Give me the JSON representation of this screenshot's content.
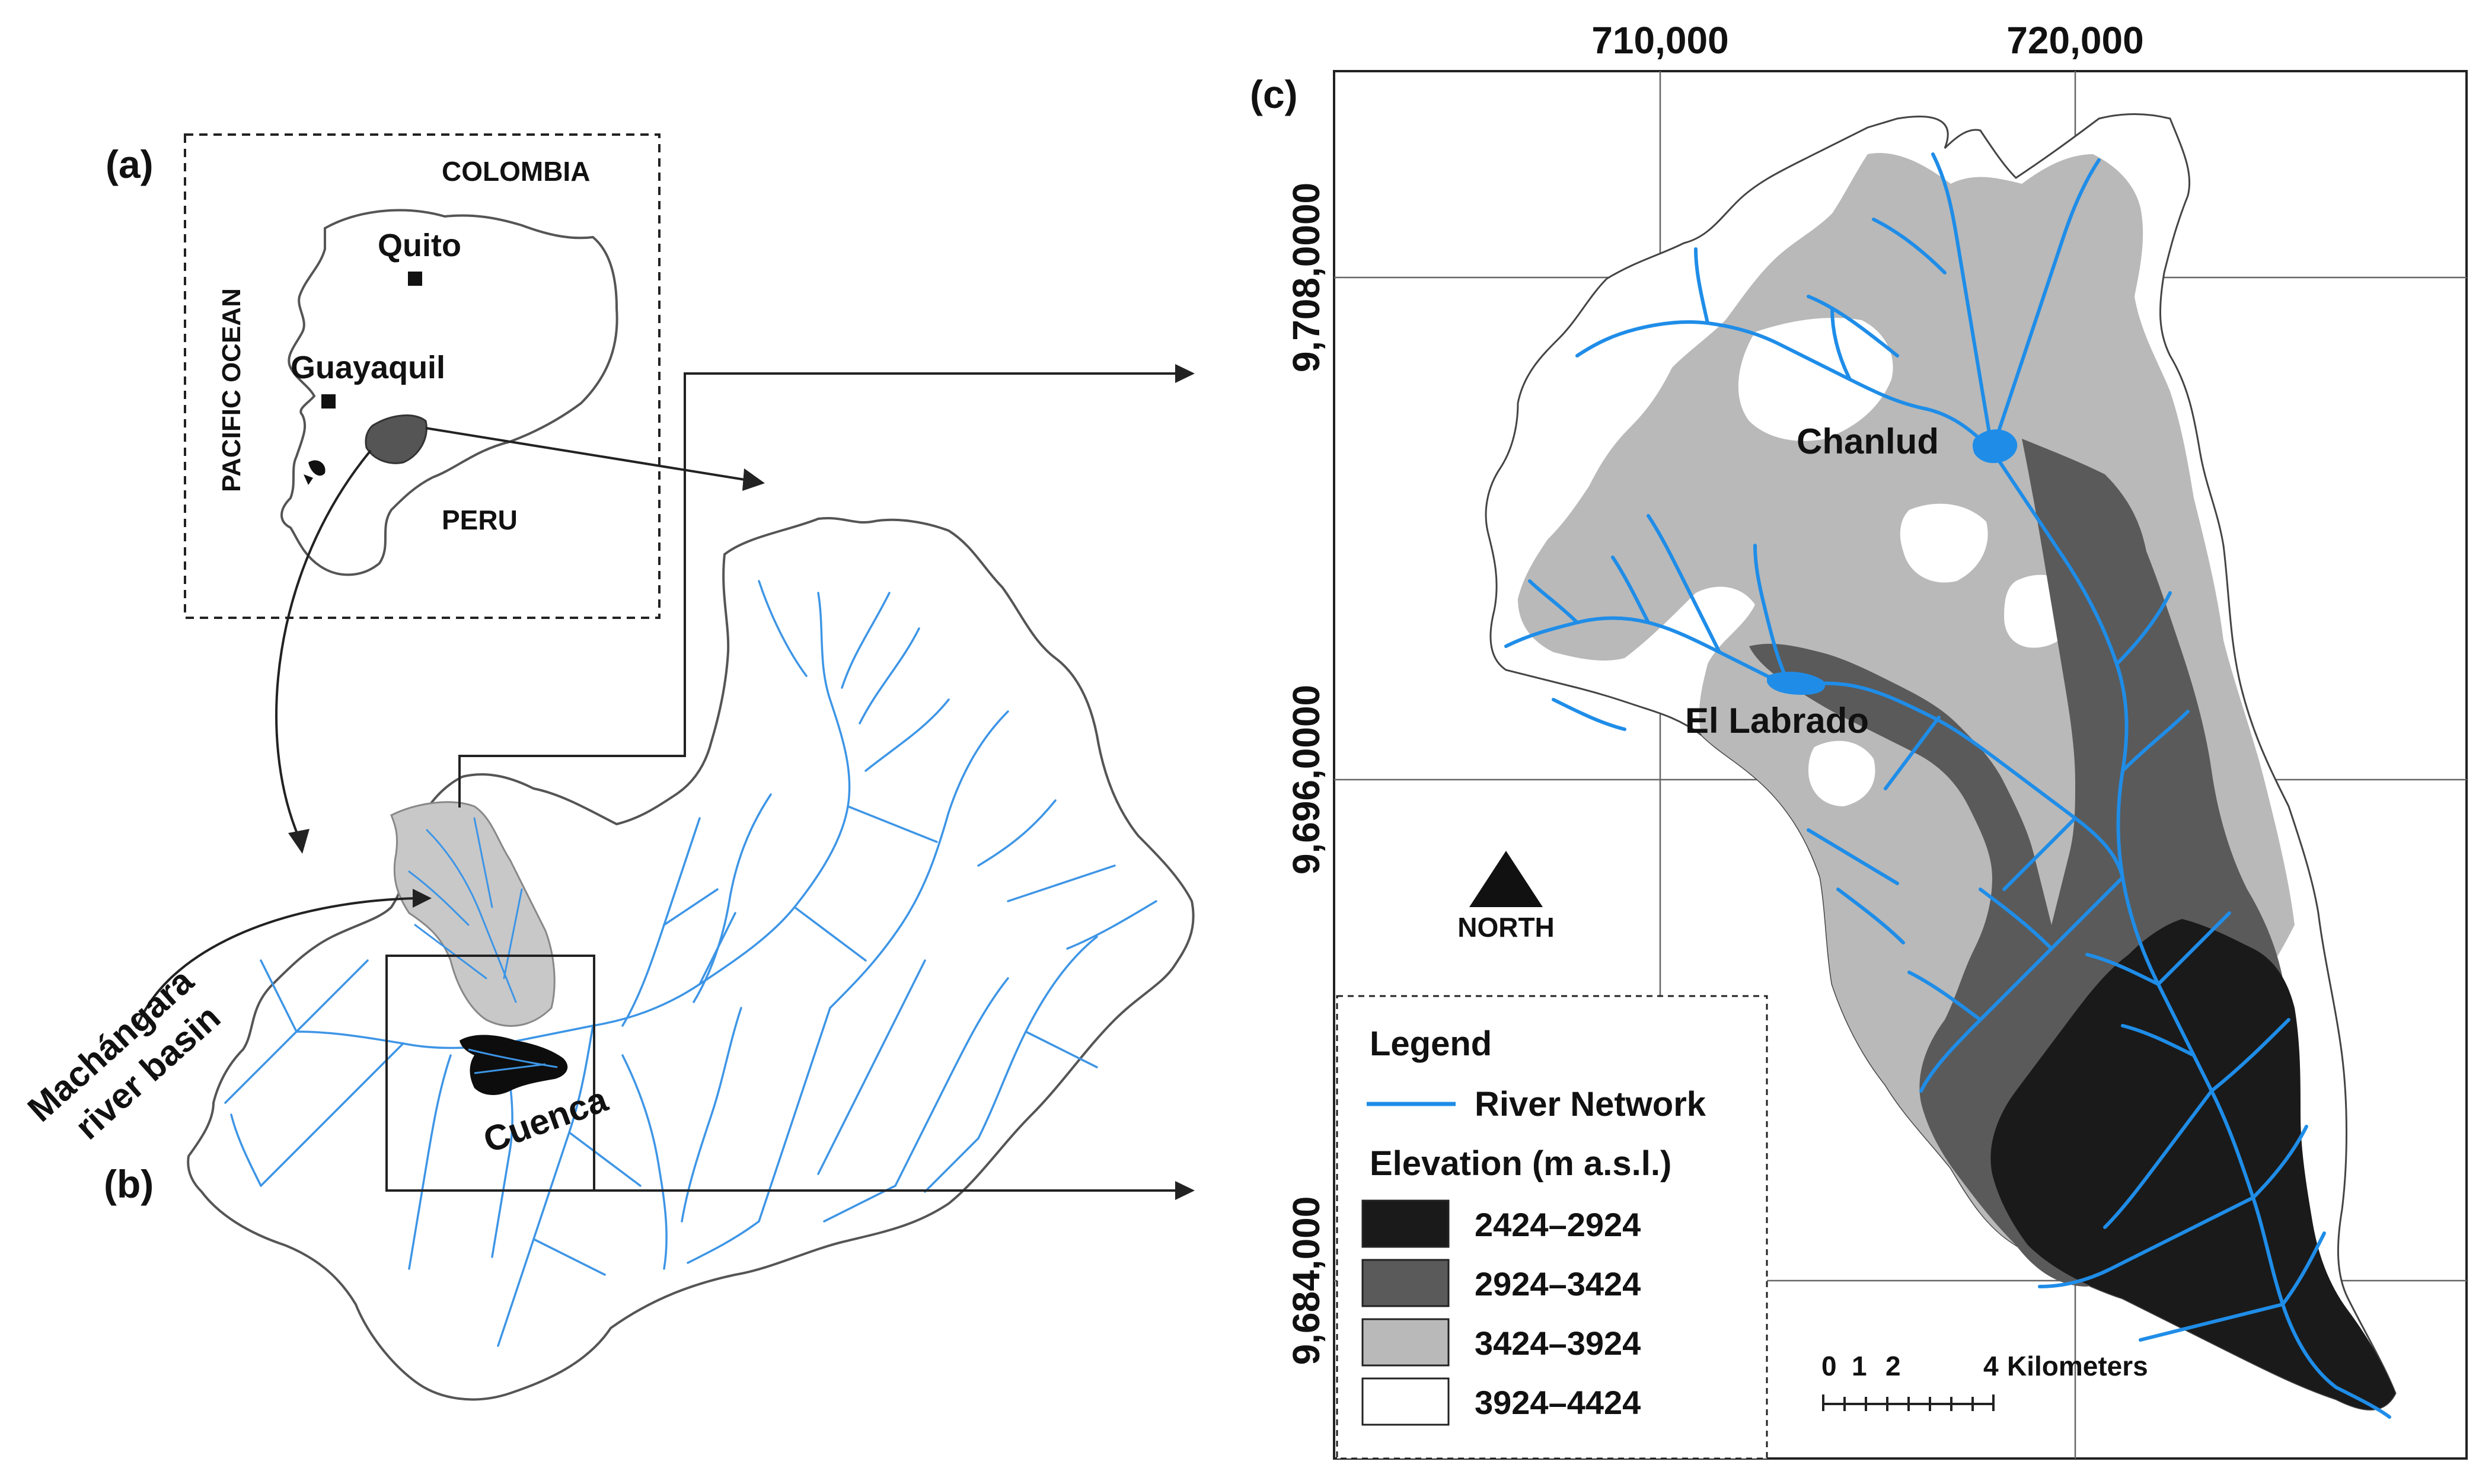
{
  "panel_a": {
    "tag": "(a)",
    "countries": {
      "north": "COLOMBIA",
      "south": "PERU"
    },
    "ocean": "PACIFIC OCEAN",
    "cities": [
      "Quito",
      "Guayaquil"
    ]
  },
  "panel_b": {
    "tag": "(b)",
    "basin_label_line1": "Machángara",
    "basin_label_line2": "river basin",
    "city": "Cuenca"
  },
  "panel_c": {
    "tag": "(c)",
    "easting_ticks": [
      "710,000",
      "720,000"
    ],
    "northing_ticks": [
      "9,708,0000",
      "9,696,0000",
      "9,684,000"
    ],
    "reservoirs": [
      "Chanlud",
      "El Labrado"
    ],
    "north_arrow_label": "NORTH",
    "scale_bar": {
      "ticks": [
        "0",
        "1",
        "2",
        "4"
      ],
      "unit": "Kilometers"
    },
    "legend": {
      "title": "Legend",
      "river_label": "River Network",
      "elevation_title": "Elevation (m a.s.l.)",
      "classes": [
        {
          "label": "2424–2924",
          "color": "#1a1a1a"
        },
        {
          "label": "2924–3424",
          "color": "#5a5a5a"
        },
        {
          "label": "3424–3924",
          "color": "#b9b9b9"
        },
        {
          "label": "3924–4424",
          "color": "#ffffff"
        }
      ]
    }
  },
  "colors": {
    "river": "#2b8ee6",
    "outline": "#444444",
    "city": "#111111"
  }
}
